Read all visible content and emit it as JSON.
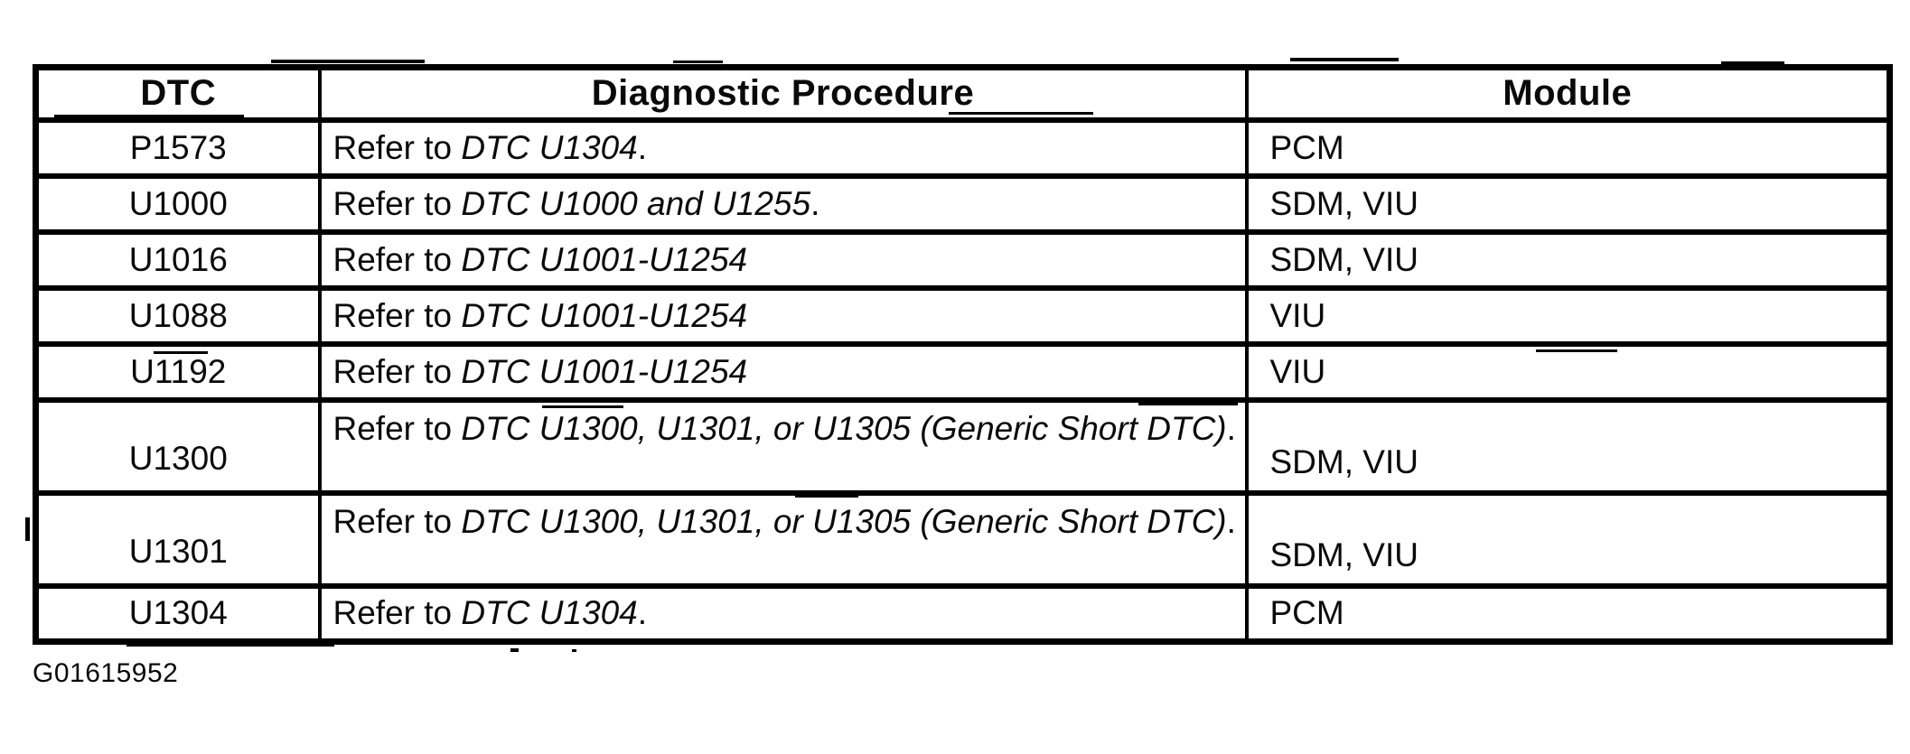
{
  "colors": {
    "ink": "#0a0a0a",
    "paper": "#ffffff"
  },
  "caption": "G01615952",
  "table": {
    "headers": [
      "DTC",
      "Diagnostic Procedure",
      "Module"
    ],
    "rows": [
      {
        "dtc": "P1573",
        "procedure": {
          "prefix": "Refer to ",
          "ref": "DTC U1304",
          "suffix": "."
        },
        "module": "PCM",
        "tall": false
      },
      {
        "dtc": "U1000",
        "procedure": {
          "prefix": "Refer to ",
          "ref": "DTC U1000 and U1255",
          "suffix": "."
        },
        "module": "SDM, VIU",
        "tall": false
      },
      {
        "dtc": "U1016",
        "procedure": {
          "prefix": "Refer to ",
          "ref": "DTC U1001-U1254",
          "suffix": ""
        },
        "module": "SDM, VIU",
        "tall": false
      },
      {
        "dtc": "U1088",
        "procedure": {
          "prefix": "Refer to ",
          "ref": "DTC U1001-U1254",
          "suffix": ""
        },
        "module": "VIU",
        "tall": false
      },
      {
        "dtc": "U1192",
        "procedure": {
          "prefix": "Refer to ",
          "ref": "DTC U1001-U1254",
          "suffix": ""
        },
        "module": "VIU",
        "tall": false
      },
      {
        "dtc": "U1300",
        "procedure": {
          "prefix": "Refer to ",
          "ref": "DTC U1300, U1301, or U1305 (Generic Short DTC)",
          "suffix": "."
        },
        "module": "SDM, VIU",
        "tall": true
      },
      {
        "dtc": "U1301",
        "procedure": {
          "prefix": "Refer to ",
          "ref": "DTC U1300, U1301, or U1305 (Generic Short DTC)",
          "suffix": "."
        },
        "module": "SDM, VIU",
        "tall": true
      },
      {
        "dtc": "U1304",
        "procedure": {
          "prefix": "Refer to ",
          "ref": "DTC U1304",
          "suffix": "."
        },
        "module": "PCM",
        "tall": false
      }
    ]
  }
}
